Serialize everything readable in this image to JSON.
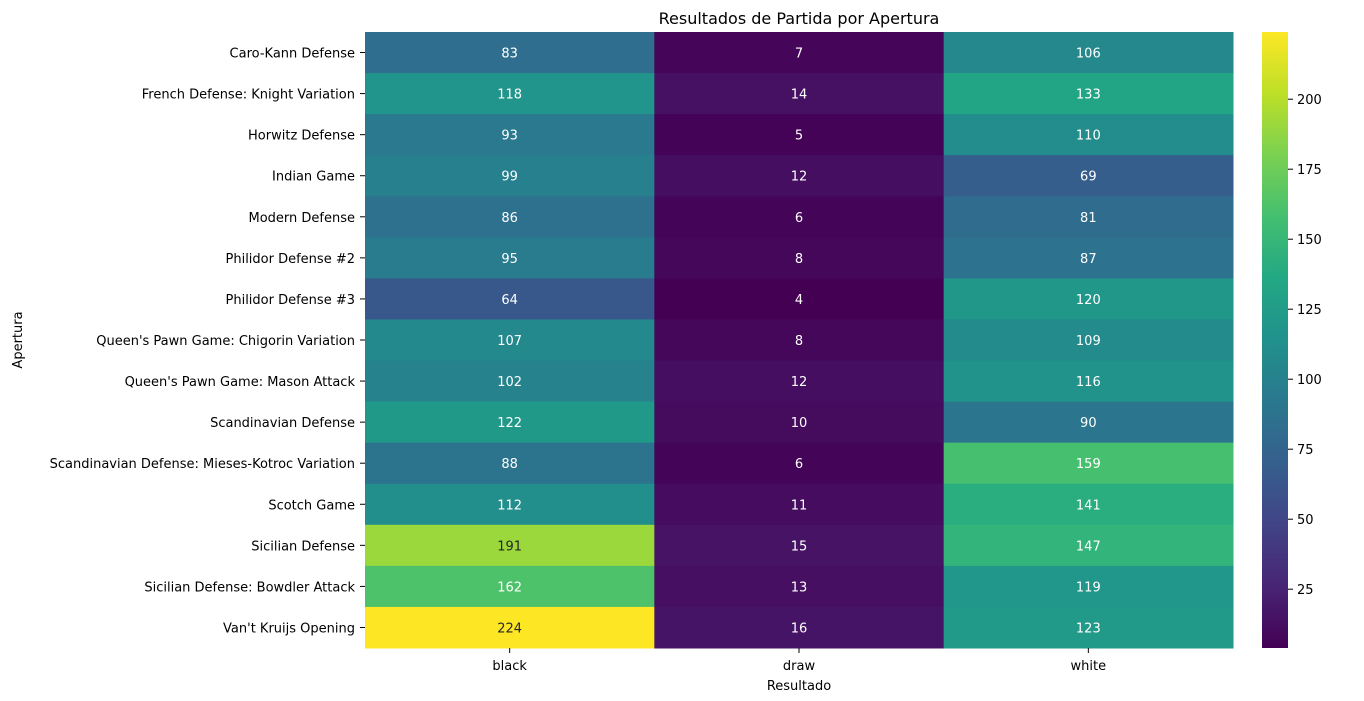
{
  "chart_data": {
    "type": "heatmap",
    "title": "Resultados de Partida por Apertura",
    "xlabel": "Resultado",
    "ylabel": "Apertura",
    "columns": [
      "black",
      "draw",
      "white"
    ],
    "rows": [
      "Caro-Kann Defense",
      "French Defense: Knight Variation",
      "Horwitz Defense",
      "Indian Game",
      "Modern Defense",
      "Philidor Defense #2",
      "Philidor Defense #3",
      "Queen's Pawn Game: Chigorin Variation",
      "Queen's Pawn Game: Mason Attack",
      "Scandinavian Defense",
      "Scandinavian Defense: Mieses-Kotroc Variation",
      "Scotch Game",
      "Sicilian Defense",
      "Sicilian Defense: Bowdler Attack",
      "Van't Kruijs Opening"
    ],
    "values": [
      [
        83,
        7,
        106
      ],
      [
        118,
        14,
        133
      ],
      [
        93,
        5,
        110
      ],
      [
        99,
        12,
        69
      ],
      [
        86,
        6,
        81
      ],
      [
        95,
        8,
        87
      ],
      [
        64,
        4,
        120
      ],
      [
        107,
        8,
        109
      ],
      [
        102,
        12,
        116
      ],
      [
        122,
        10,
        90
      ],
      [
        88,
        6,
        159
      ],
      [
        112,
        11,
        141
      ],
      [
        191,
        15,
        147
      ],
      [
        162,
        13,
        119
      ],
      [
        224,
        16,
        123
      ]
    ],
    "colormap": "viridis",
    "vmin": 4,
    "vmax": 224,
    "colorbar_ticks": [
      25,
      50,
      75,
      100,
      125,
      150,
      175,
      200
    ]
  }
}
